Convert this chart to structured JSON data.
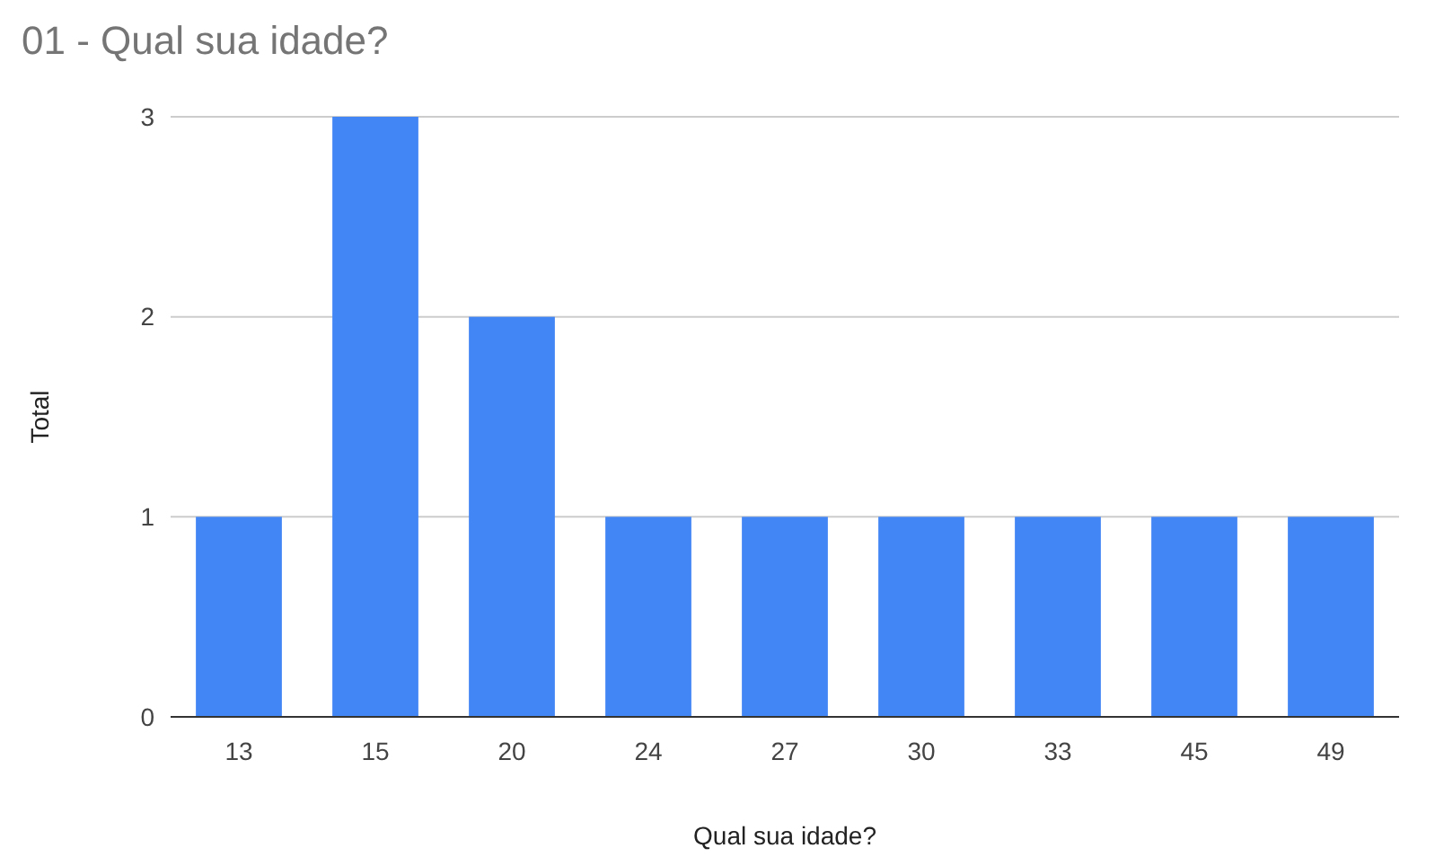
{
  "chart_data": {
    "type": "bar",
    "title": "01 - Qual sua idade?",
    "xlabel": "Qual sua idade?",
    "ylabel": "Total",
    "categories": [
      "13",
      "15",
      "20",
      "24",
      "27",
      "30",
      "33",
      "45",
      "49"
    ],
    "values": [
      1,
      3,
      2,
      1,
      1,
      1,
      1,
      1,
      1
    ],
    "color": "#4285f4",
    "ylim": [
      0,
      3
    ],
    "yticks": [
      0,
      1,
      2,
      3
    ],
    "grid": "y"
  }
}
